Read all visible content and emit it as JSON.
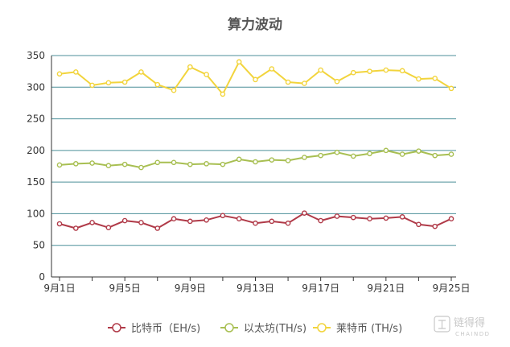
{
  "colors": {
    "btc": "#b03a48",
    "eth": "#a8bf52",
    "ltc": "#f2d43c",
    "grid": "#4c8f99",
    "axis": "#333333"
  },
  "chart_data": {
    "type": "line",
    "title": "算力波动",
    "xlabel": "",
    "ylabel": "",
    "ylim": [
      0,
      350
    ],
    "y_ticks": [
      0,
      50,
      100,
      150,
      200,
      250,
      300,
      350
    ],
    "x_tick_labels": [
      "9月1日",
      "9月5日",
      "9月9日",
      "9月13日",
      "9月17日",
      "9月21日",
      "9月25日"
    ],
    "grid": true,
    "legend_position": "bottom-center",
    "categories": [
      "9月1日",
      "9月2日",
      "9月3日",
      "9月4日",
      "9月5日",
      "9月6日",
      "9月7日",
      "9月8日",
      "9月9日",
      "9月10日",
      "9月11日",
      "9月12日",
      "9月13日",
      "9月14日",
      "9月15日",
      "9月16日",
      "9月17日",
      "9月18日",
      "9月19日",
      "9月20日",
      "9月21日",
      "9月22日",
      "9月23日",
      "9月24日",
      "9月25日"
    ],
    "series": [
      {
        "name": "比特币（EH/s)",
        "color": "#b03a48",
        "values": [
          84,
          77,
          86,
          78,
          89,
          86,
          77,
          92,
          88,
          90,
          97,
          92,
          85,
          88,
          85,
          101,
          89,
          96,
          94,
          92,
          93,
          95,
          83,
          80,
          92
        ]
      },
      {
        "name": "以太坊(TH/s)",
        "color": "#a8bf52",
        "values": [
          177,
          179,
          180,
          176,
          178,
          173,
          181,
          181,
          178,
          179,
          178,
          186,
          182,
          185,
          184,
          189,
          192,
          197,
          191,
          195,
          200,
          194,
          199,
          192,
          194
        ]
      },
      {
        "name": "莱特币 (TH/s)",
        "color": "#f2d43c",
        "values": [
          321,
          324,
          303,
          307,
          308,
          324,
          304,
          295,
          332,
          320,
          289,
          340,
          312,
          329,
          308,
          306,
          327,
          309,
          323,
          325,
          327,
          326,
          313,
          314,
          298
        ]
      }
    ]
  },
  "watermark": {
    "text_main": "链得得",
    "text_sub": "CHAINDD"
  }
}
